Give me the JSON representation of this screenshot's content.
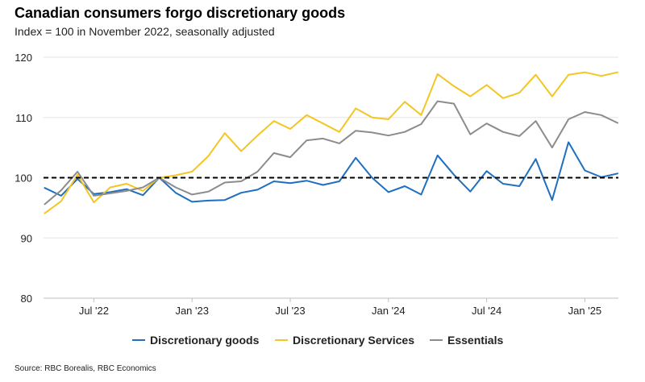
{
  "chart_data": {
    "type": "line",
    "title": "Canadian consumers forgo discretionary goods",
    "subtitle": "Index = 100 in November 2022, seasonally adjusted",
    "source": "Source: RBC Borealis, RBC Economics",
    "ylim": [
      80,
      120
    ],
    "yticks": [
      "80",
      "90",
      "100",
      "110",
      "120"
    ],
    "xtick_labels": [
      "Jul '22",
      "Jan '23",
      "Jul '23",
      "Jan '24",
      "Jul '24",
      "Jan '25"
    ],
    "reference_line": 100,
    "start_month": "2022-04",
    "series": [
      {
        "name": "Discretionary goods",
        "color": "#1f6fc1",
        "values": [
          98.3,
          97.0,
          99.8,
          97.3,
          97.6,
          98.1,
          97.1,
          100.0,
          97.5,
          96.0,
          96.2,
          96.3,
          97.5,
          98.0,
          99.4,
          99.1,
          99.5,
          98.8,
          99.4,
          103.3,
          100.0,
          97.6,
          98.6,
          97.2,
          103.7,
          100.5,
          97.7,
          101.1,
          99.0,
          98.6,
          103.1,
          96.3,
          105.9,
          101.2,
          100.1,
          100.7
        ]
      },
      {
        "name": "Discretionary Services",
        "color": "#f3c623",
        "values": [
          94.1,
          96.1,
          100.5,
          95.9,
          98.4,
          99.0,
          97.8,
          100.0,
          100.4,
          101.0,
          103.6,
          107.4,
          104.4,
          107.0,
          109.4,
          108.1,
          110.4,
          109.0,
          107.6,
          111.5,
          110.0,
          109.7,
          112.6,
          110.4,
          117.2,
          115.2,
          113.5,
          115.4,
          113.2,
          114.1,
          117.1,
          113.5,
          117.1,
          117.5,
          116.9,
          117.5
        ]
      },
      {
        "name": "Essentials",
        "color": "#8c8c8c",
        "values": [
          95.6,
          97.9,
          101.0,
          97.0,
          97.4,
          97.8,
          98.4,
          100.0,
          98.4,
          97.2,
          97.7,
          99.2,
          99.4,
          101.0,
          104.1,
          103.4,
          106.2,
          106.5,
          105.7,
          107.8,
          107.5,
          107.0,
          107.6,
          108.9,
          112.7,
          112.3,
          107.2,
          109.0,
          107.6,
          106.9,
          109.4,
          105.0,
          109.7,
          110.9,
          110.4,
          109.1
        ]
      }
    ]
  }
}
